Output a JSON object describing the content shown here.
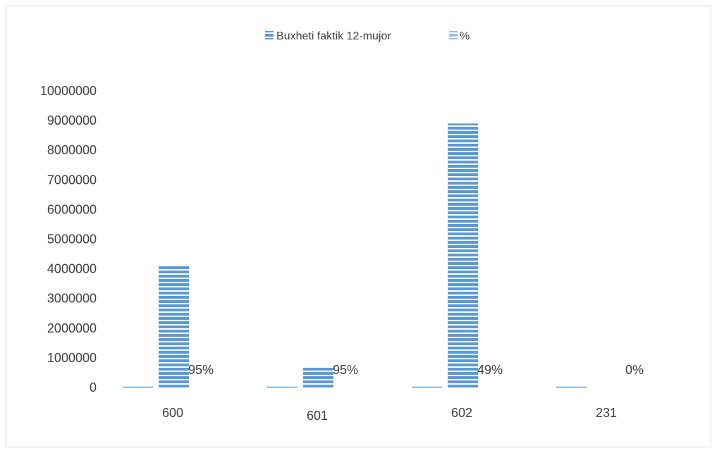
{
  "chart_data": {
    "type": "bar",
    "title": "",
    "xlabel": "",
    "ylabel": "",
    "ylim": [
      0,
      10000000
    ],
    "yticks": [
      0,
      1000000,
      2000000,
      3000000,
      4000000,
      5000000,
      6000000,
      7000000,
      8000000,
      9000000,
      10000000
    ],
    "categories": [
      "600",
      "601",
      "602",
      "231"
    ],
    "legend_position": "top",
    "grid": false,
    "series": [
      {
        "name": "Buxheti  faktik 12-mujor",
        "values": [
          4100000,
          700000,
          8900000,
          0
        ],
        "color": "#5b9bd5",
        "pattern": "horizontal-stripes"
      },
      {
        "name": "%",
        "values": [
          0.95,
          0.95,
          0.49,
          0
        ],
        "data_labels": [
          "95%",
          "95%",
          "49%",
          "0%"
        ],
        "color": "#9dc3e6",
        "pattern": "horizontal-stripes"
      }
    ]
  }
}
